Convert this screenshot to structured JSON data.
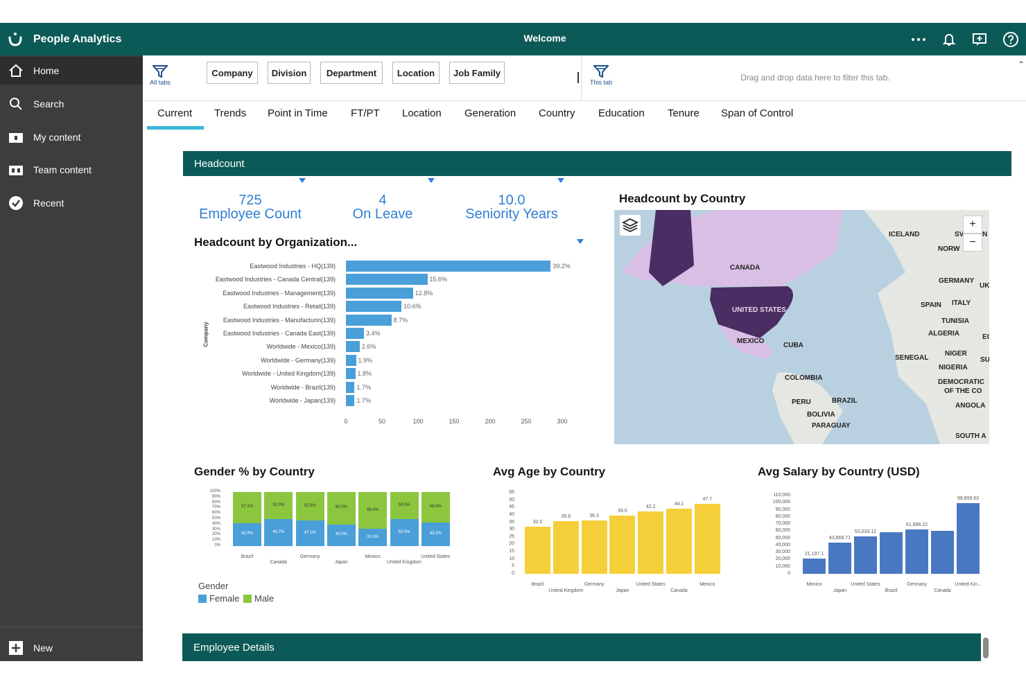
{
  "app": {
    "title": "People Analytics",
    "welcome": "Welcome"
  },
  "topbar": {
    "more_icon": "more-icon",
    "bell_icon": "bell-icon",
    "share_icon": "share-icon",
    "help_icon": "help-icon"
  },
  "sidebar": {
    "items": [
      {
        "label": "Home",
        "icon": "home-icon"
      },
      {
        "label": "Search",
        "icon": "search-icon"
      },
      {
        "label": "My content",
        "icon": "folder-icon"
      },
      {
        "label": "Team content",
        "icon": "team-folder-icon"
      },
      {
        "label": "Recent",
        "icon": "recent-icon"
      }
    ],
    "new_label": "New"
  },
  "filterbar": {
    "all_tabs_label": "All tabs",
    "this_tab_label": "This tab",
    "chips": [
      "Company",
      "Division",
      "Department",
      "Location",
      "Job Family"
    ],
    "drop_hint": "Drag and drop data here to filter this tab."
  },
  "tabs": [
    "Current",
    "Trends",
    "Point in Time",
    "FT/PT",
    "Location",
    "Generation",
    "Country",
    "Education",
    "Tenure",
    "Span of Control"
  ],
  "active_tab": "Current",
  "headcount": {
    "header": "Headcount",
    "kpis": [
      {
        "value": "725",
        "label": "Employee Count"
      },
      {
        "value": "4",
        "label": "On Leave"
      },
      {
        "value": "10.0",
        "label": "Seniority Years"
      }
    ]
  },
  "colors": {
    "brand": "#0c5a57",
    "accent": "#38b6d6",
    "kpi": "#2d7fd3",
    "female": "#4a9fd9",
    "male": "#8cc63f",
    "age": "#f5cf3a",
    "salary": "#4a78c0"
  },
  "map": {
    "title": "Headcount by Country",
    "labels": [
      "ICELAND",
      "SV",
      "N",
      "NORW",
      "CANADA",
      "GERMANY",
      "UK",
      "SPAIN",
      "ITALY",
      "UNITED STATES",
      "TUNISIA",
      "ALGERIA",
      "EG",
      "MEXICO",
      "CUBA",
      "SENEGAL",
      "NIGER",
      "SU",
      "NIGERIA",
      "COLOMBIA",
      "DEMOCRATIC",
      "OF THE CO",
      "PERU",
      "BRAZIL",
      "ANGOLA",
      "BOLIVIA",
      "PARAGUAY",
      "SOUTH A"
    ]
  },
  "chart_data": [
    {
      "type": "bar",
      "title": "Headcount by Organization...",
      "ylabel": "Company",
      "categories": [
        "Eastwood Industries - HQ(139)",
        "Eastwood Industries - Canada Central(139)",
        "Eastwood Industries - Management(139)",
        "Eastwood Industries - Retail(139)",
        "Eastwood Industries - Manufacturin(139)",
        "Eastwood Industries - Canada East(139)",
        "Worldwide - Mexico(139)",
        "Worldwide - Germany(139)",
        "Worldwide - United Kingdom(139)",
        "Worldwide - Brazil(139)",
        "Worldwide - Japan(139)"
      ],
      "values": [
        284,
        113,
        93,
        77,
        63,
        25,
        19,
        14,
        13,
        12,
        12
      ],
      "value_labels": [
        "39.2%",
        "15.6%",
        "12.8%",
        "10.6%",
        "8.7%",
        "3.4%",
        "2.6%",
        "1.9%",
        "1.8%",
        "1.7%",
        "1.7%"
      ],
      "xticks": [
        "0",
        "50",
        "100",
        "150",
        "200",
        "250",
        "300"
      ],
      "xlim": [
        0,
        300
      ]
    },
    {
      "type": "bar",
      "title": "Gender % by Country",
      "categories": [
        "Brazil",
        "Canada",
        "Germany",
        "Japan",
        "Mexico",
        "United Kingdom",
        "United States"
      ],
      "series": [
        {
          "name": "Female",
          "values": [
            42.9,
            49.7,
            47.1,
            40.0,
            31.6,
            50.0,
            43.2
          ],
          "labels": [
            "42.9%",
            "49.7%",
            "47.1%",
            "40.0%",
            "31.6%",
            "50.0%",
            "43.2%"
          ]
        },
        {
          "name": "Male",
          "values": [
            57.1,
            50.3,
            52.9,
            60.0,
            68.4,
            50.0,
            56.8
          ],
          "labels": [
            "57.1%",
            "50.3%",
            "52.9%",
            "60.0%",
            "68.4%",
            "50.0%",
            "56.8%"
          ]
        }
      ],
      "yticks": [
        "100%",
        "90%",
        "80%",
        "70%",
        "60%",
        "50%",
        "40%",
        "30%",
        "20%",
        "10%",
        "0%"
      ],
      "ylim": [
        0,
        100
      ],
      "legend_title": "Gender"
    },
    {
      "type": "bar",
      "title": "Avg Age by Country",
      "categories": [
        "Brazil",
        "United Kingdom",
        "Germany",
        "Japan",
        "United States",
        "Canada",
        "Mexico"
      ],
      "values": [
        32.0,
        35.6,
        36.3,
        39.5,
        42.2,
        44.1,
        47.7
      ],
      "value_labels": [
        "32.0",
        "35.6",
        "36.3",
        "39.5",
        "42.2",
        "44.1",
        "47.7"
      ],
      "yticks": [
        "55",
        "50",
        "45",
        "40",
        "35",
        "30",
        "25",
        "20",
        "15",
        "10",
        "5",
        "0"
      ],
      "ylim": [
        0,
        55
      ]
    },
    {
      "type": "bar",
      "title": "Avg Salary by Country (USD)",
      "categories": [
        "Mexico",
        "Japan",
        "United States",
        "Brazil",
        "Germany",
        "Canada",
        "United Kin..."
      ],
      "values": [
        21197.1,
        43866.71,
        53033.12,
        58000,
        61998.22,
        60500,
        98899.63
      ],
      "value_labels": [
        "21,197.1",
        "43,866.71",
        "53,033.12",
        "",
        "61,998.22",
        "",
        "98,899.63"
      ],
      "yticks": [
        "110,000",
        "100,000",
        "90,000",
        "80,000",
        "70,000",
        "60,000",
        "50,000",
        "40,000",
        "30,000",
        "20,000",
        "10,000",
        "0"
      ],
      "ylim": [
        0,
        110000
      ]
    }
  ],
  "employee_details": {
    "header": "Employee Details"
  }
}
